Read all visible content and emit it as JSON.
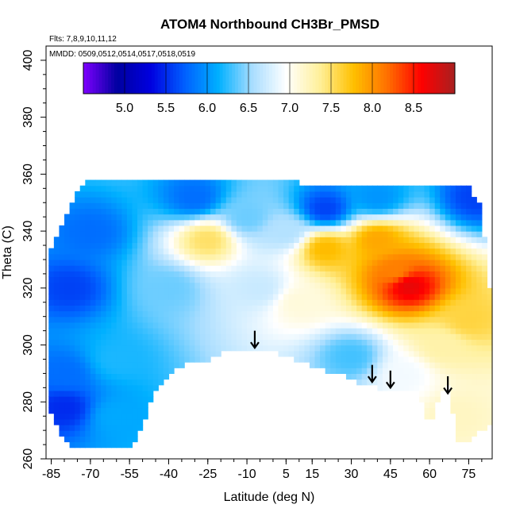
{
  "chart_data": {
    "type": "heatmap",
    "title": "ATOM4 Northbound CH3Br_PMSD",
    "annotations": {
      "flights": "Flts: 7,8,9,10,11,12",
      "dates": "MMDD: 0509,0512,0514,0517,0518,0519"
    },
    "xlabel": "Latitude (deg N)",
    "ylabel": "Theta (C)",
    "xlim": [
      -87,
      84
    ],
    "ylim": [
      260,
      405
    ],
    "x_ticks": [
      -85,
      -70,
      -55,
      -40,
      -25,
      -10,
      5,
      15,
      30,
      45,
      60,
      75
    ],
    "x_tick_labels": [
      "-85",
      "-70",
      "-55",
      "-40",
      "-25",
      "-10",
      "5",
      "15",
      "30",
      "45",
      "60",
      "75"
    ],
    "y_ticks": [
      260,
      280,
      300,
      320,
      340,
      360,
      380,
      400
    ],
    "y_tick_labels": [
      "260",
      "280",
      "300",
      "320",
      "340",
      "360",
      "380",
      "400"
    ],
    "colorbar": {
      "range": [
        4.5,
        9.0
      ],
      "ticks": [
        5.0,
        5.5,
        6.0,
        6.5,
        7.0,
        7.5,
        8.0,
        8.5
      ],
      "tick_labels": [
        "5.0",
        "5.5",
        "6.0",
        "6.5",
        "7.0",
        "7.5",
        "8.0",
        "8.5"
      ],
      "colors": [
        "#7f00ff",
        "#0000a0",
        "#0000e0",
        "#0060ff",
        "#00b0ff",
        "#a8ddff",
        "#ffffff",
        "#fff09a",
        "#ffc000",
        "#ff7000",
        "#ff0000",
        "#a82020"
      ]
    },
    "data_region": {
      "lat": [
        -86,
        -85,
        -83,
        -81,
        -79,
        -77,
        -75,
        -73,
        -71,
        -70,
        -69,
        -60,
        -54,
        -50,
        -45,
        -40,
        -30,
        -25,
        -20,
        -10,
        -5,
        0,
        5,
        10,
        15,
        20,
        25,
        30,
        35,
        40,
        45,
        50,
        55,
        58,
        60,
        62,
        65,
        68,
        70,
        75,
        80,
        83
      ],
      "theta_top": [
        329,
        333,
        337,
        341,
        345,
        349,
        353,
        356,
        357,
        357,
        358,
        357,
        357,
        357,
        357,
        357,
        357,
        357,
        357,
        357,
        357,
        357,
        357,
        357,
        356,
        356,
        356,
        356,
        356,
        355,
        355,
        355,
        355,
        355,
        355,
        355,
        355,
        355,
        356,
        356,
        348,
        320
      ],
      "theta_bottom": [
        278,
        276,
        272,
        268,
        266,
        265,
        265,
        265,
        265,
        265,
        265,
        265,
        265,
        272,
        284,
        290,
        295,
        295,
        297,
        299,
        298,
        298,
        296,
        294,
        293,
        291,
        290,
        288,
        286,
        285,
        284,
        285,
        283,
        278,
        270,
        278,
        285,
        288,
        265,
        267,
        270,
        272
      ]
    },
    "hotspots": [
      {
        "lat": 52,
        "theta": 321,
        "value": 8.7
      },
      {
        "lat": 47,
        "theta": 326,
        "value": 8.1
      },
      {
        "lat": 40,
        "theta": 337,
        "value": 7.9
      },
      {
        "lat": 20,
        "theta": 334,
        "value": 7.8
      },
      {
        "lat": 75,
        "theta": 309,
        "value": 7.6
      },
      {
        "lat": -25,
        "theta": 337,
        "value": 7.5
      },
      {
        "lat": 65,
        "theta": 300,
        "value": 7.3
      },
      {
        "lat": 10,
        "theta": 315,
        "value": 7.1
      },
      {
        "lat": 5,
        "theta": 340,
        "value": 6.6
      },
      {
        "lat": -5,
        "theta": 320,
        "value": 6.7
      },
      {
        "lat": -40,
        "theta": 320,
        "value": 6.4
      },
      {
        "lat": -70,
        "theta": 340,
        "value": 5.8
      },
      {
        "lat": -78,
        "theta": 320,
        "value": 5.6
      },
      {
        "lat": -80,
        "theta": 290,
        "value": 5.8
      },
      {
        "lat": -80,
        "theta": 278,
        "value": 5.5
      },
      {
        "lat": -60,
        "theta": 295,
        "value": 6.2
      },
      {
        "lat": -60,
        "theta": 275,
        "value": 6.1
      },
      {
        "lat": 20,
        "theta": 348,
        "value": 5.6
      },
      {
        "lat": -30,
        "theta": 352,
        "value": 5.8
      },
      {
        "lat": 40,
        "theta": 352,
        "value": 6.0
      },
      {
        "lat": 78,
        "theta": 352,
        "value": 5.6
      },
      {
        "lat": 30,
        "theta": 296,
        "value": 6.3
      },
      {
        "lat": 50,
        "theta": 290,
        "value": 6.9
      },
      {
        "lat": 70,
        "theta": 275,
        "value": 7.2
      },
      {
        "lat": -10,
        "theta": 345,
        "value": 6.4
      }
    ],
    "background_value": 6.7,
    "arrows": [
      {
        "lat": -7,
        "theta": 304
      },
      {
        "lat": 38,
        "theta": 292
      },
      {
        "lat": 45,
        "theta": 290
      },
      {
        "lat": 67,
        "theta": 288
      }
    ],
    "grid": false
  }
}
